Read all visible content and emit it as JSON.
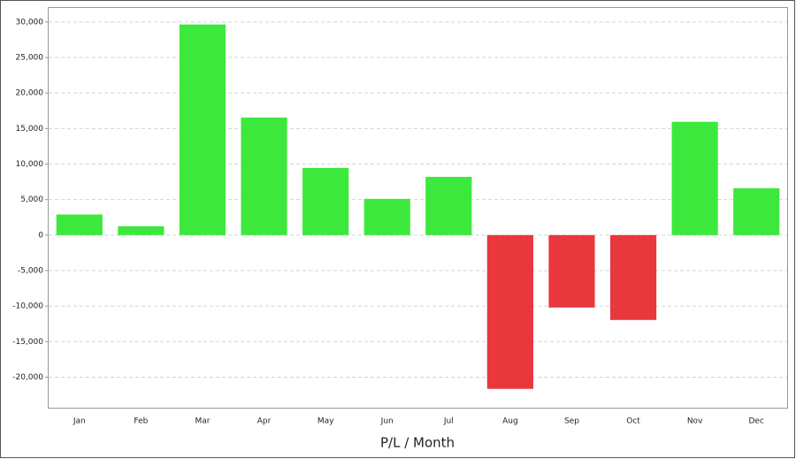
{
  "chart_data": {
    "type": "bar",
    "x_label": "P/L / Month",
    "categories": [
      "Jan",
      "Feb",
      "Mar",
      "Apr",
      "May",
      "Jun",
      "Jul",
      "Aug",
      "Sep",
      "Oct",
      "Nov",
      "Dec"
    ],
    "values": [
      2900,
      1250,
      29650,
      16550,
      9450,
      5100,
      8200,
      -21650,
      -10200,
      -11950,
      15950,
      6600
    ],
    "positive_color": "#3de83d",
    "negative_color": "#e8383d",
    "ylim": [
      -24300,
      32100
    ],
    "yticks": [
      {
        "value": -20000,
        "label": "-20,000"
      },
      {
        "value": -15000,
        "label": "-15,000"
      },
      {
        "value": -10000,
        "label": "-10,000"
      },
      {
        "value": -5000,
        "label": "-5,000"
      },
      0,
      {
        "value": 5000,
        "label": "5,000"
      },
      {
        "value": 10000,
        "label": "10,000"
      },
      {
        "value": 15000,
        "label": "15,000"
      },
      {
        "value": 20000,
        "label": "20,000"
      },
      {
        "value": 25000,
        "label": "25,000"
      },
      {
        "value": 30000,
        "label": "30,000"
      }
    ],
    "grid": true
  }
}
